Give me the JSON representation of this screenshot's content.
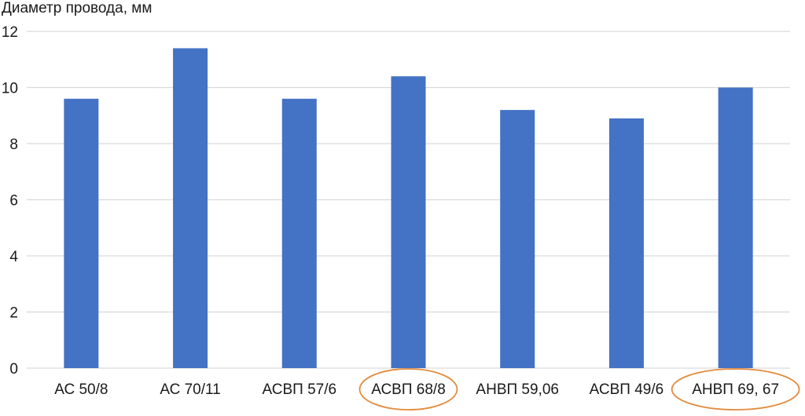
{
  "chart_data": {
    "type": "bar",
    "ylabel": "Диаметр провода, мм",
    "xlabel": "",
    "categories": [
      "АС 50/8",
      "АС 70/11",
      "АСВП 57/6",
      "АСВП 68/8",
      "АНВП 59,06",
      "АСВП 49/6",
      "АНВП 69, 67"
    ],
    "values": [
      9.6,
      11.4,
      9.6,
      10.4,
      9.2,
      8.9,
      10.0
    ],
    "highlighted": [
      "АСВП 68/8",
      "АНВП 69, 67"
    ],
    "ylim": [
      0,
      12
    ],
    "yticks": [
      "0",
      "2",
      "4",
      "6",
      "8",
      "10",
      "12"
    ],
    "grid": true,
    "bar_color": "#4472C4",
    "grid_color": "#D9D9D9",
    "highlight_color": "#E48A3C"
  }
}
